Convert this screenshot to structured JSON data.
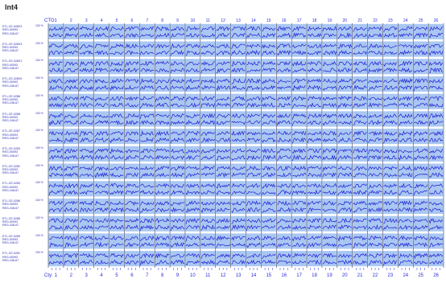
{
  "title": "Int4",
  "chart_data": {
    "type": "line",
    "title": "Int4",
    "top_axis_label": "CTG:",
    "bottom_axis_label": "Cty:",
    "columns_top": [
      "1",
      "2",
      "3",
      "4",
      "5",
      "6",
      "7",
      "8",
      "9",
      "10",
      "11",
      "12",
      "13",
      "14",
      "15",
      "16",
      "17",
      "18",
      "19",
      "20",
      "21",
      "22",
      "23",
      "24",
      "25",
      "26"
    ],
    "columns_bottom": [
      "1",
      "2",
      "3",
      "4",
      "5",
      "6",
      "7",
      "8",
      "9",
      "10",
      "11",
      "12",
      "13",
      "14",
      "15",
      "16",
      "17",
      "18",
      "19",
      "20",
      "21",
      "22",
      "23",
      "24",
      "25",
      "26"
    ],
    "rows": [
      {
        "lines": [
          "ETL-CE-028X3",
          "REG-00093",
          "REG-246-67"
        ],
        "unit": "100 %"
      },
      {
        "lines": [
          "ETL-CE-028X3",
          "REG-00093",
          "REG-246-67"
        ],
        "unit": "100 %"
      },
      {
        "lines": [
          "ETL-CE-028X1",
          "REG-00093",
          "REG-246-67"
        ],
        "unit": "100 %"
      },
      {
        "lines": [
          "ETL-CE-028X9",
          "REG-00093",
          "REG-246-67"
        ],
        "unit": "100 %"
      },
      {
        "lines": [
          "ETL-CE-0288",
          "REG-00093",
          "REG-246-67"
        ],
        "unit": "100 %"
      },
      {
        "lines": [
          "ETL-CE-0288",
          "REG-00093",
          "REG-246-67"
        ],
        "unit": "100 %"
      },
      {
        "lines": [
          "ETL-CE-0287",
          "REG-00093",
          "REG-246-67"
        ],
        "unit": "100 %"
      },
      {
        "lines": [
          "ETL-CE-0283",
          "REG-00093",
          "REG-246-67"
        ],
        "unit": "100 %"
      },
      {
        "lines": [
          "ETL-CE-0282",
          "REG-00093",
          "REG-246-67"
        ],
        "unit": "100 %"
      },
      {
        "lines": [
          "ETL-CE-0283",
          "REG-00093",
          "REG-246-67"
        ],
        "unit": "100 %"
      },
      {
        "lines": [
          "ETL-CE-0286",
          "REG-00093",
          "REG-246-67"
        ],
        "unit": "100 %"
      },
      {
        "lines": [
          "ETL-CE-0286",
          "REG-00093",
          "REG-246-67"
        ],
        "unit": "100 %"
      },
      {
        "lines": [
          "ETL-CE-0289",
          "REG-00093",
          "REG-246-67"
        ],
        "unit": "100 %"
      },
      {
        "lines": [
          "ETL-CE-0281",
          "REG-00093",
          "REG-246-67"
        ],
        "unit": "100 %"
      }
    ],
    "colors": {
      "panel": "#a9c7f2",
      "line": "#1d1dd6",
      "grid": "#3a3a5a",
      "text": "#2b2bd8"
    }
  }
}
